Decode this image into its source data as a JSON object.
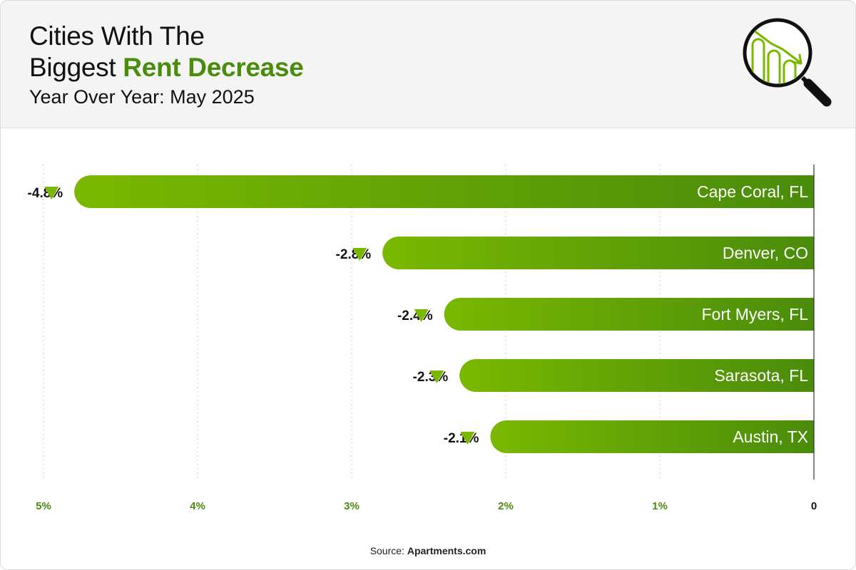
{
  "header": {
    "title_line1": "Cities With The",
    "title_line2_plain": "Biggest ",
    "title_line2_accent": "Rent Decrease",
    "subtitle": "Year Over Year: May 2025",
    "icon": "magnifier-declining-bars-icon"
  },
  "source": {
    "prefix": "Source: ",
    "name": "Apartments.com"
  },
  "colors": {
    "accent": "#4a8c0b",
    "bar_light": "#7ab800",
    "bar_dark": "#4a8c0b",
    "tick_green": "#4a8c0b",
    "marker": "#7ab800"
  },
  "chart_data": {
    "type": "bar",
    "orientation": "horizontal",
    "categories": [
      "Cape Coral, FL",
      "Denver, CO",
      "Fort Myers, FL",
      "Sarasota, FL",
      "Austin, TX"
    ],
    "values": [
      -4.8,
      -2.8,
      -2.4,
      -2.3,
      -2.1
    ],
    "value_labels": [
      "-4.8%",
      "-2.8%",
      "-2.4%",
      "-2.3%",
      "-2.1%"
    ],
    "x_ticks": [
      "5%",
      "4%",
      "3%",
      "2%",
      "1%",
      "0"
    ],
    "xlim": [
      5,
      0
    ],
    "grid": true
  }
}
